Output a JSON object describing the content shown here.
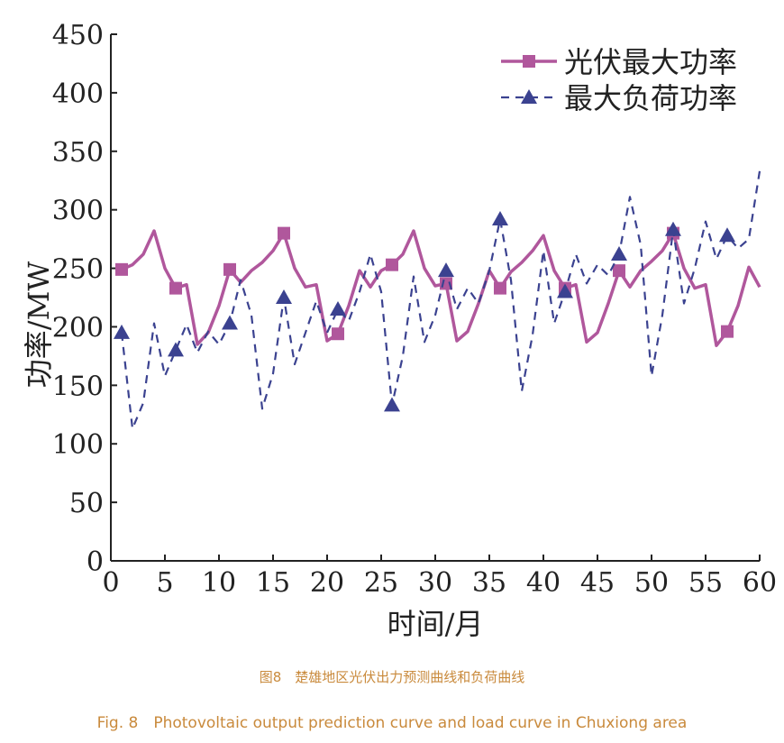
{
  "chart_data": {
    "type": "line",
    "xlabel": "时间/月",
    "ylabel": "功率/MW",
    "xlim": [
      0,
      60
    ],
    "ylim": [
      0,
      450
    ],
    "xticks": [
      0,
      5,
      10,
      15,
      20,
      25,
      30,
      35,
      40,
      45,
      50,
      55,
      60
    ],
    "yticks": [
      0,
      50,
      100,
      150,
      200,
      250,
      300,
      350,
      400,
      450
    ],
    "grid": false,
    "legend_position": "top-right",
    "x": [
      1,
      2,
      3,
      4,
      5,
      6,
      7,
      8,
      9,
      10,
      11,
      12,
      13,
      14,
      15,
      16,
      17,
      18,
      19,
      20,
      21,
      22,
      23,
      24,
      25,
      26,
      27,
      28,
      29,
      30,
      31,
      32,
      33,
      34,
      35,
      36,
      37,
      38,
      39,
      40,
      41,
      42,
      43,
      44,
      45,
      46,
      47,
      48,
      49,
      50,
      51,
      52,
      53,
      54,
      55,
      56,
      57,
      58,
      59,
      60
    ],
    "marker_x": [
      1,
      6,
      11,
      16,
      21,
      26,
      31,
      36,
      42,
      47,
      52,
      57
    ],
    "series": [
      {
        "name": "光伏最大功率",
        "color": "#b0579c",
        "style": "solid",
        "marker": "square",
        "values": [
          249,
          253,
          262,
          282,
          250,
          233,
          236,
          185,
          195,
          218,
          249,
          238,
          248,
          255,
          265,
          280,
          250,
          234,
          236,
          188,
          194,
          218,
          248,
          234,
          248,
          253,
          262,
          282,
          250,
          235,
          237,
          188,
          196,
          220,
          248,
          233,
          247,
          255,
          265,
          278,
          248,
          233,
          236,
          187,
          195,
          220,
          248,
          234,
          248,
          256,
          265,
          280,
          250,
          233,
          236,
          184,
          196,
          218,
          251,
          234
        ]
      },
      {
        "name": "最大负荷功率",
        "color": "#3b4290",
        "style": "dashed",
        "marker": "triangle",
        "values": [
          195,
          113,
          135,
          203,
          158,
          180,
          202,
          178,
          196,
          185,
          203,
          240,
          210,
          130,
          160,
          225,
          168,
          195,
          222,
          195,
          215,
          205,
          230,
          262,
          230,
          133,
          175,
          243,
          187,
          210,
          248,
          215,
          233,
          220,
          248,
          292,
          240,
          145,
          193,
          265,
          203,
          230,
          262,
          237,
          253,
          244,
          262,
          311,
          270,
          158,
          210,
          283,
          220,
          250,
          290,
          258,
          278,
          267,
          275,
          333
        ]
      }
    ]
  },
  "caption": {
    "cn": "图8　楚雄地区光伏出力预测曲线和负荷曲线",
    "en": "Fig. 8　Photovoltaic output prediction curve and load curve in Chuxiong area"
  }
}
